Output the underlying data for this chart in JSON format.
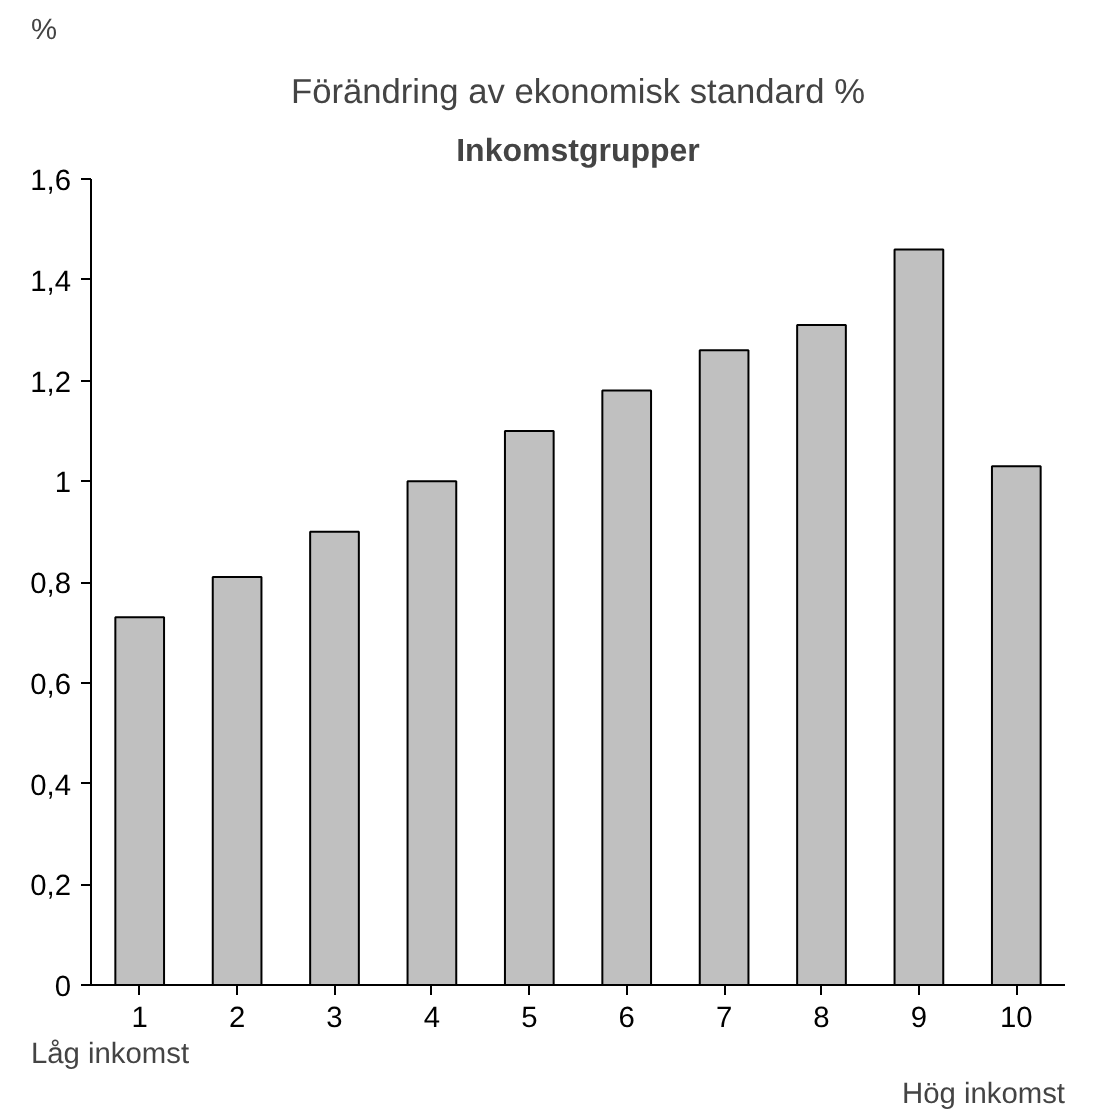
{
  "chart_data": {
    "type": "bar",
    "title": "Förändring av ekonomisk standard %",
    "subtitle": "Inkomstgrupper",
    "ylabel": "%",
    "categories": [
      "1",
      "2",
      "3",
      "4",
      "5",
      "6",
      "7",
      "8",
      "9",
      "10"
    ],
    "values": [
      0.73,
      0.81,
      0.9,
      1.0,
      1.1,
      1.18,
      1.26,
      1.31,
      1.46,
      1.03
    ],
    "color": "#c0c0c0",
    "ylim": [
      0,
      1.6
    ],
    "yticks": [
      0,
      {
        "value": 0.2,
        "label": "0,2"
      },
      {
        "value": 0.4,
        "label": "0,4"
      },
      {
        "value": 0.6,
        "label": "0,6"
      },
      {
        "value": 0.8,
        "label": "0,8"
      },
      1,
      {
        "value": 1.2,
        "label": "1,2"
      },
      {
        "value": 1.4,
        "label": "1,4"
      },
      {
        "value": 1.6,
        "label": "1,6"
      }
    ],
    "annotations": [
      "Låg inkomst",
      "Hög inkomst"
    ],
    "grid": false
  }
}
